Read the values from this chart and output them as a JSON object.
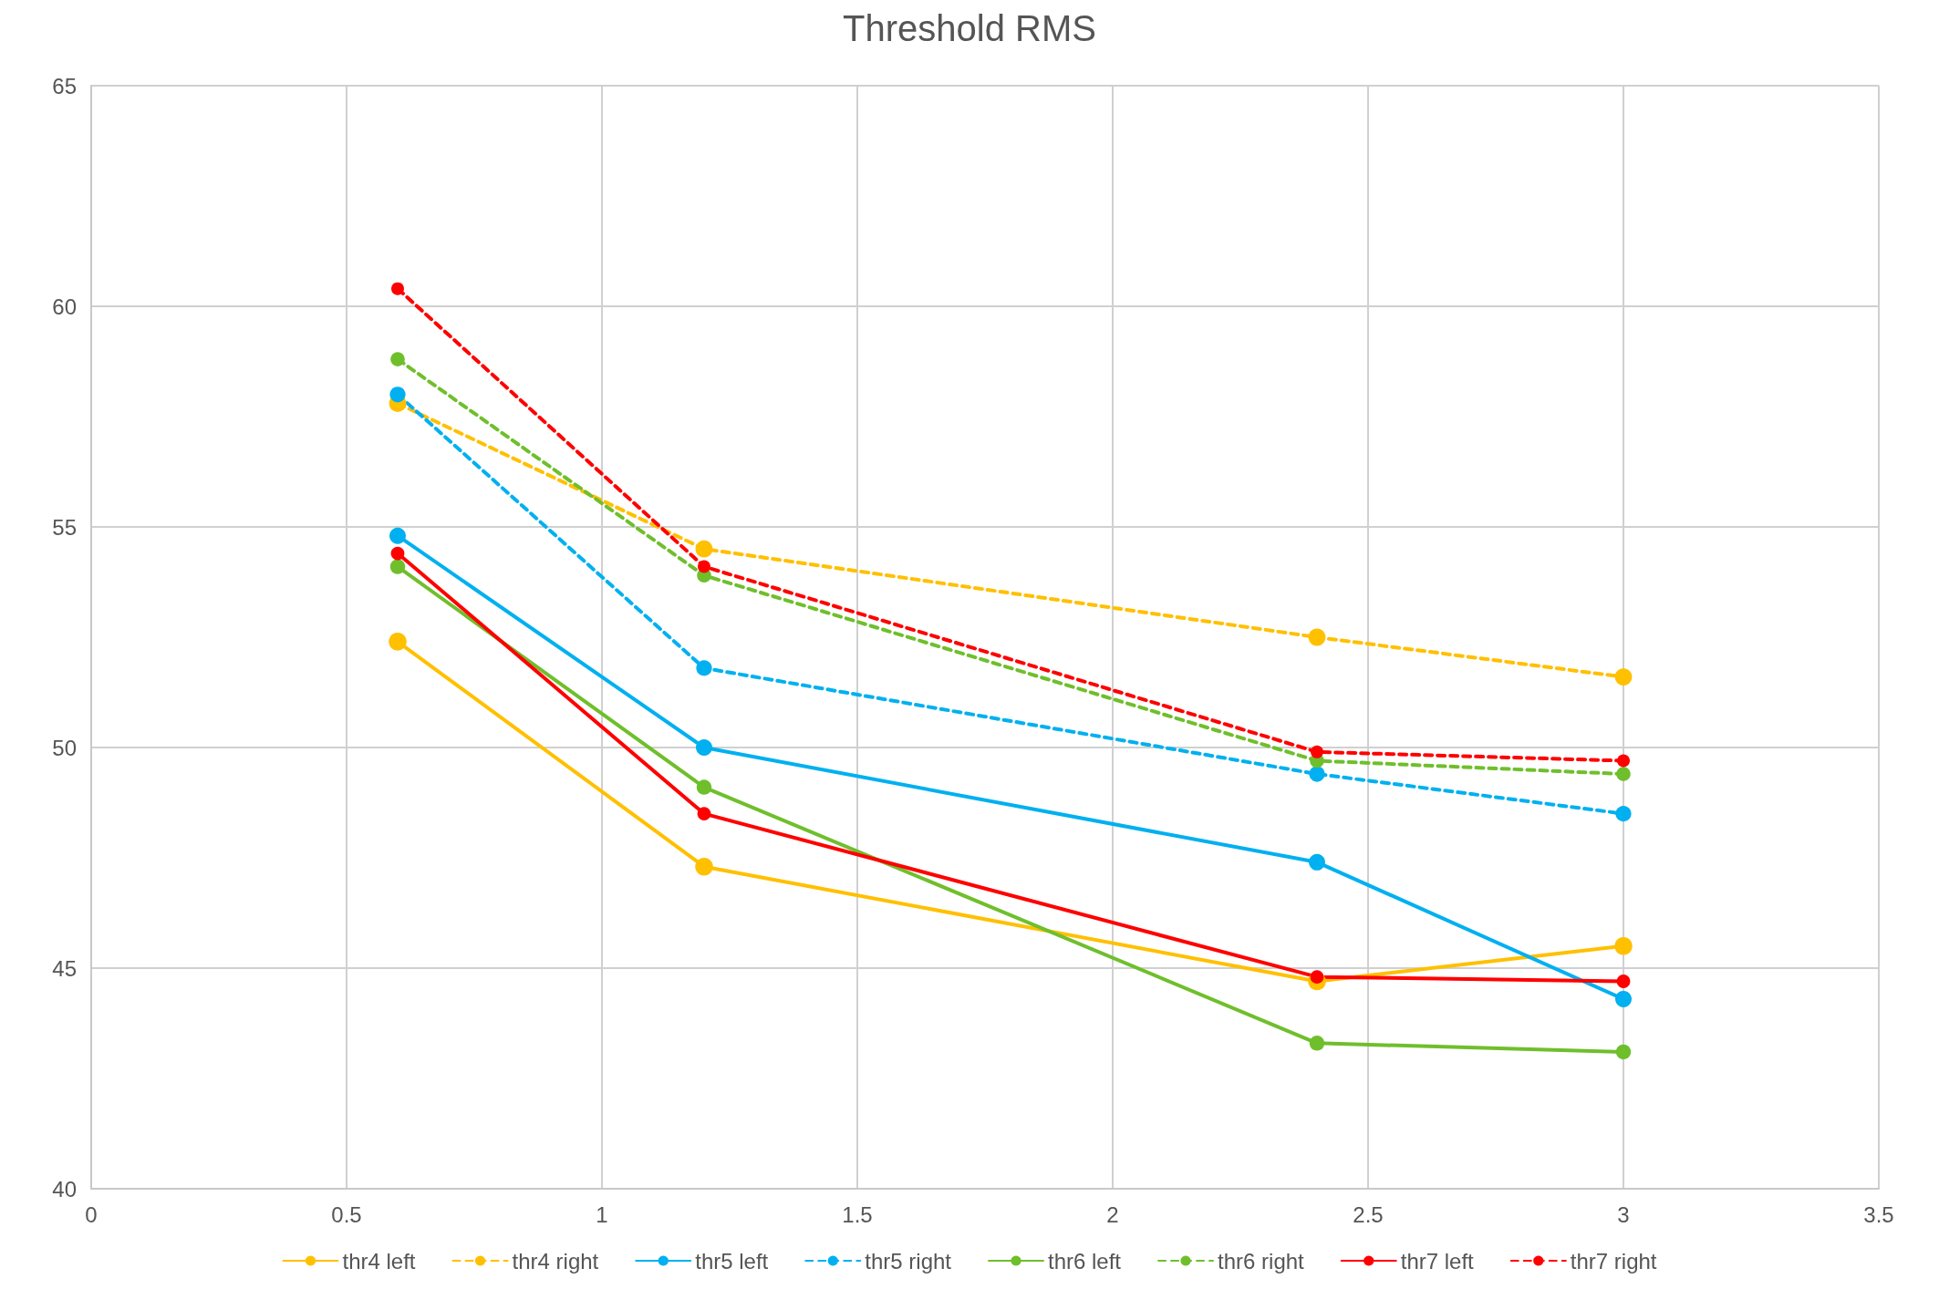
{
  "chart_data": {
    "type": "line",
    "title": "Threshold RMS",
    "x": [
      0.6,
      1.2,
      2.4,
      3
    ],
    "xlim": [
      0,
      3.5
    ],
    "xticks": [
      0,
      0.5,
      1,
      1.5,
      2,
      2.5,
      3,
      3.5
    ],
    "ylim": [
      40,
      65
    ],
    "yticks": [
      40,
      45,
      50,
      55,
      60,
      65
    ],
    "grid": true,
    "legend": "bottom",
    "marker": "circle",
    "series": [
      {
        "name": "thr4 left",
        "color": "#ffc000",
        "line_style": "solid",
        "values": [
          52.4,
          47.3,
          44.7,
          45.5
        ]
      },
      {
        "name": "thr4 right",
        "color": "#ffc000",
        "line_style": "dashed",
        "values": [
          57.8,
          54.5,
          52.5,
          51.6
        ]
      },
      {
        "name": "thr5 left",
        "color": "#00b0f0",
        "line_style": "solid",
        "values": [
          54.8,
          50.0,
          47.4,
          44.3
        ]
      },
      {
        "name": "thr5 right",
        "color": "#00b0f0",
        "line_style": "dashed",
        "values": [
          58.0,
          51.8,
          49.4,
          48.5
        ]
      },
      {
        "name": "thr6 left",
        "color": "#6fbf2c",
        "line_style": "solid",
        "values": [
          54.1,
          49.1,
          43.3,
          43.1
        ]
      },
      {
        "name": "thr6 right",
        "color": "#6fbf2c",
        "line_style": "dashed",
        "values": [
          58.8,
          53.9,
          49.7,
          49.4
        ]
      },
      {
        "name": "thr7 left",
        "color": "#ff0000",
        "line_style": "solid",
        "values": [
          54.4,
          48.5,
          44.8,
          44.7
        ]
      },
      {
        "name": "thr7 right",
        "color": "#ff0000",
        "line_style": "dashed",
        "values": [
          60.4,
          54.1,
          49.9,
          49.7
        ]
      }
    ]
  }
}
